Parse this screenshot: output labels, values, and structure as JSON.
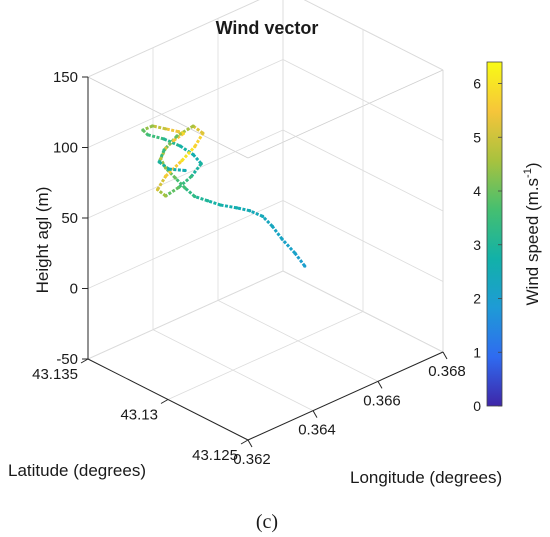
{
  "chart_data": {
    "type": "line",
    "title": "Wind vector",
    "xlabel": "Longitude (degrees)",
    "ylabel": "Latitude  (degrees)",
    "zlabel": "Height agl  (m)",
    "caption": "(c)",
    "x_ticks": [
      "0.362",
      "0.364",
      "0.366",
      "0.368"
    ],
    "y_ticks": [
      "43.125",
      "43.13",
      "43.135"
    ],
    "z_ticks": [
      "-50",
      "0",
      "50",
      "100",
      "150"
    ],
    "xlim": [
      0.362,
      0.368
    ],
    "ylim": [
      43.125,
      43.135
    ],
    "zlim": [
      -50,
      150
    ],
    "grid": true,
    "colorbar": {
      "label": "Wind speed (m.s",
      "label_superscript": "-1",
      "label_suffix": ")",
      "ticks": [
        "0",
        "1",
        "2",
        "3",
        "4",
        "5",
        "6"
      ],
      "range": [
        0,
        6.4
      ],
      "colors": [
        "#3e26a8",
        "#2f6bf0",
        "#1e9bd6",
        "#12b1a8",
        "#45bf70",
        "#a8c23e",
        "#f6c53a",
        "#f9fb15"
      ]
    },
    "series": [
      {
        "points": [
          [
            0.3667,
            43.131,
            -10
          ],
          [
            0.3665,
            43.1312,
            0
          ],
          [
            0.3662,
            43.1314,
            12
          ],
          [
            0.366,
            43.1316,
            22
          ],
          [
            0.3658,
            43.1318,
            30
          ],
          [
            0.3655,
            43.132,
            36
          ],
          [
            0.3652,
            43.1322,
            40
          ],
          [
            0.3648,
            43.1324,
            45
          ],
          [
            0.3645,
            43.1326,
            50
          ],
          [
            0.3642,
            43.1328,
            55
          ],
          [
            0.364,
            43.133,
            62
          ],
          [
            0.3638,
            43.1332,
            70
          ],
          [
            0.3636,
            43.1334,
            78
          ],
          [
            0.3635,
            43.1335,
            85
          ],
          [
            0.3636,
            43.1334,
            92
          ],
          [
            0.3638,
            43.1333,
            96
          ],
          [
            0.364,
            43.1331,
            100
          ],
          [
            0.3638,
            43.133,
            104
          ],
          [
            0.3635,
            43.1332,
            108
          ],
          [
            0.3632,
            43.1334,
            112
          ],
          [
            0.363,
            43.1336,
            110
          ],
          [
            0.3632,
            43.1337,
            104
          ],
          [
            0.3636,
            43.1335,
            98
          ],
          [
            0.364,
            43.1333,
            90
          ],
          [
            0.3643,
            43.1331,
            82
          ],
          [
            0.3645,
            43.133,
            74
          ],
          [
            0.3643,
            43.1332,
            66
          ],
          [
            0.364,
            43.1334,
            60
          ],
          [
            0.3637,
            43.1336,
            56
          ],
          [
            0.3635,
            43.1337,
            62
          ],
          [
            0.3637,
            43.1336,
            70
          ],
          [
            0.3641,
            43.1334,
            78
          ],
          [
            0.3644,
            43.1332,
            86
          ],
          [
            0.3646,
            43.1331,
            94
          ],
          [
            0.3644,
            43.1333,
            100
          ],
          [
            0.364,
            43.1335,
            96
          ],
          [
            0.3637,
            43.1337,
            88
          ],
          [
            0.3636,
            43.1338,
            80
          ],
          [
            0.3638,
            43.1336,
            74
          ],
          [
            0.3642,
            43.1334,
            70
          ]
        ],
        "speeds": [
          2.0,
          2.1,
          2.2,
          2.3,
          2.4,
          2.5,
          2.6,
          2.8,
          3.0,
          3.3,
          3.6,
          4.0,
          4.4,
          4.8,
          5.2,
          5.5,
          5.8,
          5.4,
          4.9,
          4.4,
          3.9,
          3.5,
          3.1,
          2.8,
          2.6,
          2.9,
          3.4,
          3.9,
          4.5,
          5.1,
          5.6,
          6.0,
          5.7,
          5.2,
          4.6,
          4.0,
          3.4,
          2.9,
          2.6,
          2.5
        ]
      }
    ]
  }
}
